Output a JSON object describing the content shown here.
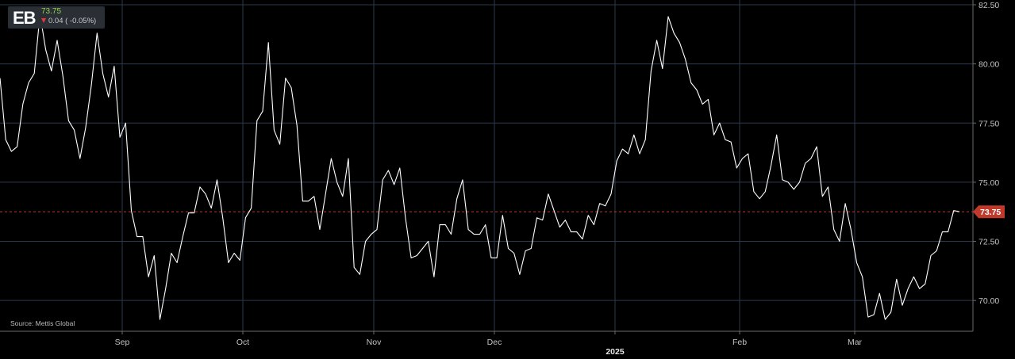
{
  "ticker": {
    "symbol": "EB",
    "price": "73.75",
    "change": "0.04 ( -0.05%)"
  },
  "source": "Source: Mettis Global",
  "colors": {
    "background": "#000000",
    "line": "#ffffff",
    "grid": "#2c3a4d",
    "last_price_line": "#c0392b",
    "last_price_badge": "#c0392b",
    "price_up": "#8fd14f",
    "change_down_marker": "#e03a3a"
  },
  "chart_data": {
    "type": "line",
    "title": "",
    "xlabel": "",
    "ylabel": "",
    "ylim": [
      68.7,
      82.7
    ],
    "y_ticks": [
      "82.50",
      "80.00",
      "77.50",
      "75.00",
      "72.50",
      "70.00"
    ],
    "x_ticks": [
      {
        "label": "Sep",
        "bold": false
      },
      {
        "label": "Oct",
        "bold": false
      },
      {
        "label": "Nov",
        "bold": false
      },
      {
        "label": "Dec",
        "bold": false
      },
      {
        "label": "2025",
        "bold": true
      },
      {
        "label": "Feb",
        "bold": false
      },
      {
        "label": "Mar",
        "bold": false
      }
    ],
    "last_price": "73.75",
    "grid": true,
    "series": [
      {
        "values": [
          79.4,
          76.8,
          76.3,
          76.5,
          78.3,
          79.2,
          79.6,
          82.1,
          80.6,
          79.7,
          81.0,
          79.5,
          77.6,
          77.2,
          76.0,
          77.3,
          79.1,
          81.3,
          79.6,
          78.6,
          79.9,
          76.9,
          77.5,
          73.8,
          72.7,
          72.7,
          71.0,
          71.9,
          69.2,
          70.5,
          72.0,
          71.6,
          72.7,
          73.7,
          73.7,
          74.8,
          74.5,
          73.9,
          75.1,
          73.5,
          71.6,
          72.0,
          71.7,
          73.5,
          73.9,
          77.6,
          78.0,
          80.9,
          77.2,
          76.6,
          79.4,
          79.0,
          77.4,
          74.2,
          74.2,
          74.4,
          73.0,
          74.5,
          76.0,
          75.0,
          74.4,
          76.0,
          71.4,
          71.1,
          72.5,
          72.8,
          73.0,
          75.1,
          75.5,
          74.9,
          75.6,
          73.5,
          71.8,
          71.9,
          72.2,
          72.5,
          71.0,
          73.2,
          73.2,
          72.8,
          74.3,
          75.1,
          73.0,
          72.8,
          72.8,
          73.2,
          71.8,
          71.8,
          73.6,
          72.2,
          72.0,
          71.1,
          72.1,
          72.2,
          73.5,
          73.4,
          74.5,
          73.8,
          73.1,
          73.4,
          72.9,
          72.9,
          72.6,
          73.6,
          73.2,
          74.1,
          74.0,
          74.5,
          75.9,
          76.4,
          76.2,
          77.0,
          76.2,
          76.8,
          79.7,
          81.0,
          79.8,
          82.0,
          81.3,
          80.9,
          80.2,
          79.2,
          78.9,
          78.3,
          78.5,
          77.0,
          77.5,
          76.8,
          76.7,
          75.6,
          76.0,
          76.2,
          74.6,
          74.3,
          74.6,
          75.7,
          77.0,
          75.1,
          75.0,
          74.7,
          75.0,
          75.8,
          76.0,
          76.5,
          74.4,
          74.8,
          73.0,
          72.5,
          74.1,
          73.0,
          71.6,
          71.0,
          69.3,
          69.4,
          70.3,
          69.2,
          69.5,
          70.9,
          69.8,
          70.5,
          71.0,
          70.5,
          70.7,
          71.9,
          72.1,
          72.9,
          72.9,
          73.8,
          73.75
        ]
      }
    ]
  }
}
